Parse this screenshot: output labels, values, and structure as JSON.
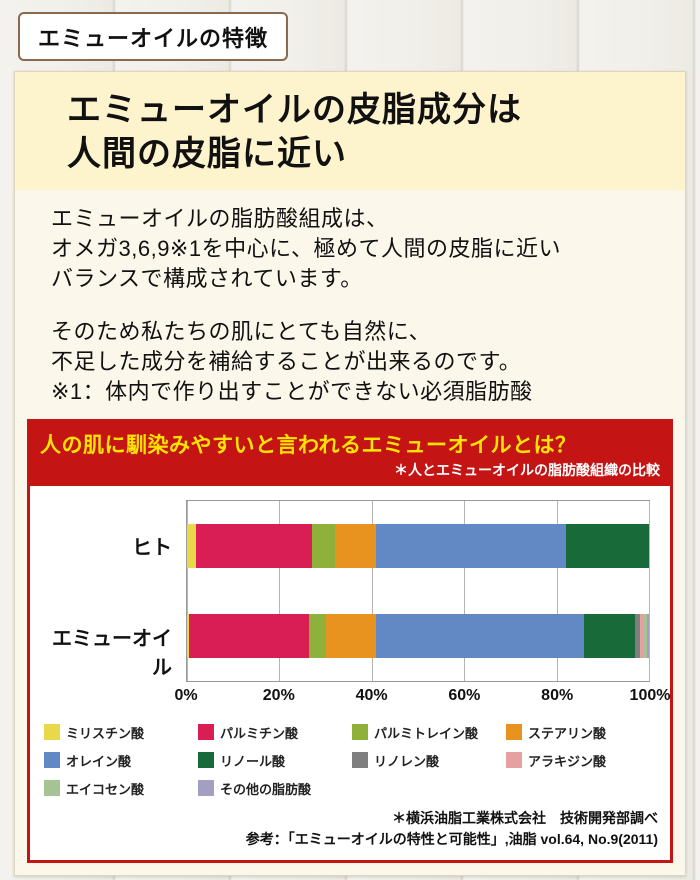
{
  "header": {
    "title": "エミューオイルの特徴"
  },
  "main": {
    "headline_line1": "エミューオイルの皮脂成分は",
    "headline_line2": "人間の皮脂に近い",
    "paragraph1": "エミューオイルの脂肪酸組成は、\nオメガ3,6,9※1を中心に、極めて人間の皮脂に近い\nバランスで構成されています。",
    "paragraph2": "そのため私たちの肌にとても自然に、\n不足した成分を補給することが出来るのです。",
    "footnote": "※1：体内で作り出すことができない必須脂肪酸"
  },
  "chart": {
    "title": "人の肌に馴染みやすいと言われるエミューオイルとは？",
    "subtitle": "＊人とエミューオイルの脂肪酸組織の比較",
    "source": "＊横浜油脂工業株式会社　技術開発部調べ",
    "reference": "参考：「エミューオイルの特性と可能性」,油脂 vol.64, No.9(2011)"
  },
  "colors": {
    "chart_header_bg": "#c41414",
    "chart_title": "#ffe400",
    "chart_subtitle": "#ffffff"
  },
  "chart_data": {
    "type": "bar",
    "variant": "horizontal-stacked",
    "categories": [
      "ヒト",
      "エミューオイル"
    ],
    "series": [
      {
        "name": "ミリスチン酸",
        "color": "#e9d94a",
        "values": [
          2,
          0.5
        ]
      },
      {
        "name": "パルミチン酸",
        "color": "#d91e56",
        "values": [
          25,
          26
        ]
      },
      {
        "name": "パルミトレイン酸",
        "color": "#8fb13c",
        "values": [
          5,
          3.5
        ]
      },
      {
        "name": "ステアリン酸",
        "color": "#e8921f",
        "values": [
          9,
          11
        ]
      },
      {
        "name": "オレイン酸",
        "color": "#6289c4",
        "values": [
          41,
          45
        ]
      },
      {
        "name": "リノール酸",
        "color": "#186b38",
        "values": [
          18,
          11
        ]
      },
      {
        "name": "リノレン酸",
        "color": "#7f7f7f",
        "values": [
          0,
          1
        ]
      },
      {
        "name": "アラキジン酸",
        "color": "#e5a0a0",
        "values": [
          0,
          1
        ]
      },
      {
        "name": "エイコセン酸",
        "color": "#a5c394",
        "values": [
          0,
          0.5
        ]
      },
      {
        "name": "その他の脂肪酸",
        "color": "#a39fc2",
        "values": [
          0,
          0.5
        ]
      }
    ],
    "x_ticks": [
      "0%",
      "20%",
      "40%",
      "60%",
      "80%",
      "100%"
    ],
    "xlim": [
      0,
      100
    ],
    "grid": true,
    "legend_position": "bottom"
  }
}
